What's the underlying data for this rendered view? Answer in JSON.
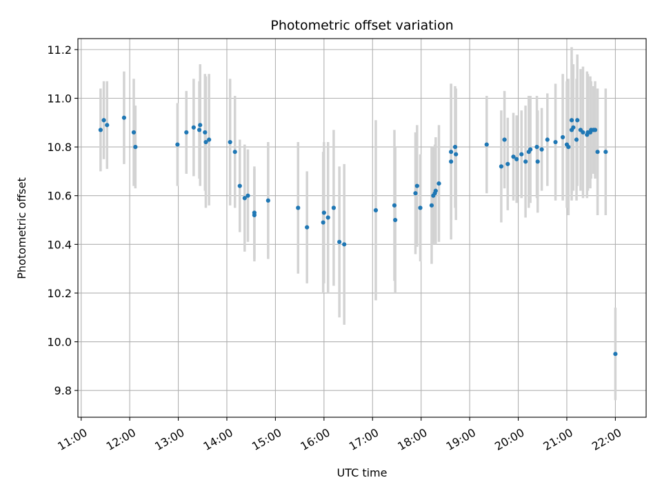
{
  "chart_data": {
    "type": "scatter",
    "title": "Photometric offset variation",
    "xlabel": "UTC time",
    "ylabel": "Photometric offset",
    "x_ticks": [
      "11:00",
      "12:00",
      "13:00",
      "14:00",
      "15:00",
      "16:00",
      "17:00",
      "18:00",
      "19:00",
      "20:00",
      "21:00",
      "22:00"
    ],
    "y_ticks": [
      "9.8",
      "10.0",
      "10.2",
      "10.4",
      "10.6",
      "10.8",
      "11.0",
      "11.2"
    ],
    "xlim": [
      "10:56",
      "22:38"
    ],
    "ylim": [
      9.69,
      11.245
    ],
    "grid": true,
    "legend": "none",
    "colors": {
      "point": "#1f77b4",
      "errorbar": "#d3d3d3",
      "grid": "#b0b0b0"
    },
    "series": [
      {
        "x": [
          "11:24",
          "11:28",
          "11:32",
          "11:53",
          "12:05",
          "12:07",
          "12:59",
          "13:10",
          "13:19",
          "13:26",
          "13:27",
          "13:33",
          "13:34",
          "13:38",
          "14:04",
          "14:10",
          "14:16",
          "14:22",
          "14:26",
          "14:34",
          "14:34",
          "14:51",
          "15:28",
          "15:39",
          "15:59",
          "16:00",
          "16:05",
          "16:12",
          "16:19",
          "16:25",
          "17:04",
          "17:27",
          "17:28",
          "17:53",
          "17:55",
          "17:59",
          "18:13",
          "18:15",
          "18:17",
          "18:18",
          "18:22",
          "18:37",
          "18:37",
          "18:42",
          "18:43",
          "19:21",
          "19:39",
          "19:43",
          "19:47",
          "19:54",
          "19:58",
          "20:04",
          "20:09",
          "20:13",
          "20:15",
          "20:23",
          "20:24",
          "20:29",
          "20:36",
          "20:46",
          "20:55",
          "21:00",
          "21:02",
          "21:06",
          "21:06",
          "21:08",
          "21:12",
          "21:13",
          "21:17",
          "21:20",
          "21:25",
          "21:26",
          "21:29",
          "21:30",
          "21:33",
          "21:35",
          "21:38",
          "21:48",
          "22:00"
        ],
        "y": [
          10.87,
          10.91,
          10.89,
          10.92,
          10.86,
          10.8,
          10.81,
          10.86,
          10.88,
          10.87,
          10.89,
          10.86,
          10.82,
          10.83,
          10.82,
          10.78,
          10.64,
          10.59,
          10.6,
          10.52,
          10.53,
          10.58,
          10.55,
          10.47,
          10.49,
          10.53,
          10.51,
          10.55,
          10.41,
          10.4,
          10.54,
          10.56,
          10.5,
          10.61,
          10.64,
          10.55,
          10.56,
          10.6,
          10.61,
          10.62,
          10.65,
          10.74,
          10.78,
          10.8,
          10.77,
          10.81,
          10.72,
          10.83,
          10.73,
          10.76,
          10.75,
          10.77,
          10.74,
          10.78,
          10.79,
          10.8,
          10.74,
          10.79,
          10.83,
          10.82,
          10.84,
          10.81,
          10.8,
          10.87,
          10.91,
          10.88,
          10.83,
          10.91,
          10.87,
          10.86,
          10.85,
          10.86,
          10.86,
          10.87,
          10.87,
          10.87,
          10.78,
          10.78,
          9.95
        ],
        "yerr": [
          0.17,
          0.16,
          0.18,
          0.19,
          0.22,
          0.17,
          0.17,
          0.17,
          0.2,
          0.2,
          0.25,
          0.24,
          0.27,
          0.27,
          0.26,
          0.23,
          0.19,
          0.22,
          0.19,
          0.19,
          0.19,
          0.24,
          0.27,
          0.23,
          0.29,
          0.29,
          0.31,
          0.32,
          0.31,
          0.33,
          0.37,
          0.31,
          0.3,
          0.25,
          0.25,
          0.22,
          0.24,
          0.2,
          0.2,
          0.22,
          0.24,
          0.32,
          0.28,
          0.25,
          0.27,
          0.2,
          0.23,
          0.2,
          0.19,
          0.18,
          0.18,
          0.18,
          0.23,
          0.23,
          0.22,
          0.21,
          0.21,
          0.17,
          0.19,
          0.24,
          0.26,
          0.26,
          0.28,
          0.29,
          0.3,
          0.26,
          0.25,
          0.27,
          0.25,
          0.27,
          0.26,
          0.24,
          0.23,
          0.2,
          0.18,
          0.2,
          0.26,
          0.26,
          0.19
        ]
      }
    ]
  }
}
